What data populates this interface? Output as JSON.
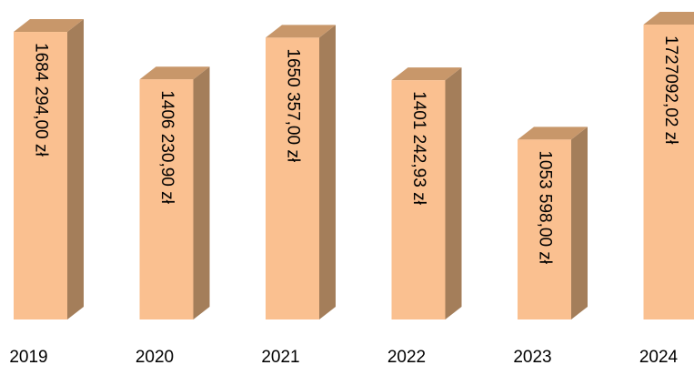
{
  "chart_data": {
    "type": "bar",
    "style": "3d-column",
    "categories": [
      "2019",
      "2020",
      "2021",
      "2022",
      "2023",
      "2024"
    ],
    "values": [
      1684294.0,
      1406230.9,
      1650357.0,
      1401242.93,
      1053598.0,
      1727092.02
    ],
    "data_labels": [
      "1684 294,00 zł",
      "1406 230,90 zł",
      "1650 357,00 zł",
      "1401 242,93 zł",
      "1053 598,00 zł",
      "1727092,02 zł"
    ],
    "title": "",
    "xlabel": "",
    "ylabel": "",
    "ylim": [
      0,
      1727092.02
    ],
    "grid": false,
    "legend": "none",
    "colors": {
      "front": "#FAC090",
      "top": "#C8976A",
      "side": "#A47E5A"
    }
  }
}
